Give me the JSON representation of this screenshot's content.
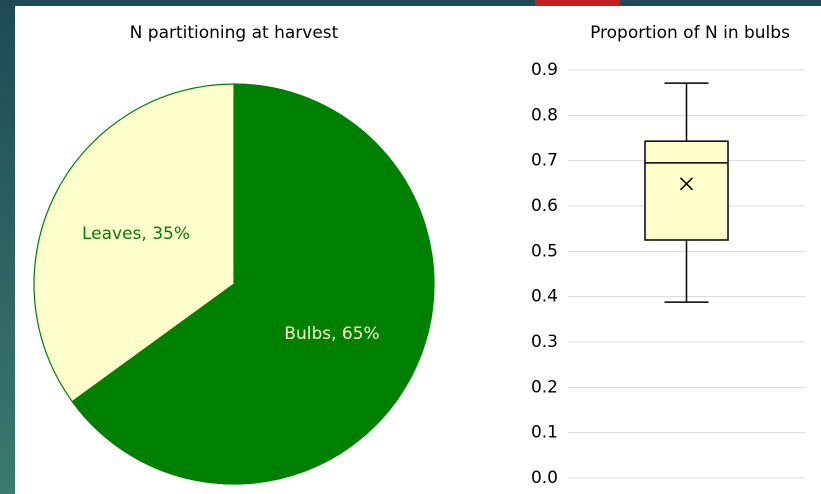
{
  "chart_data": [
    {
      "type": "pie",
      "title": "N partitioning at harvest",
      "categories": [
        "Bulbs",
        "Leaves"
      ],
      "values": [
        65,
        35
      ],
      "value_labels": [
        "Bulbs, 65%",
        "Leaves, 35%"
      ],
      "colors": [
        "#008000",
        "#ffffcc"
      ],
      "label_colors": [
        "#ffffcc",
        "#008000"
      ]
    },
    {
      "type": "box",
      "title": "Proportion of N in bulbs",
      "min": 0.388,
      "q1": 0.525,
      "median": 0.695,
      "q3": 0.743,
      "max": 0.871,
      "mean": 0.649,
      "color": "#ffffcc",
      "ylim": [
        0,
        0.9
      ],
      "yticks": [
        {
          "value": 0,
          "label": "0.0"
        },
        0.1,
        0.2,
        0.3,
        0.4,
        0.5,
        0.6,
        0.7,
        0.8,
        0.9
      ],
      "grid": true
    }
  ]
}
